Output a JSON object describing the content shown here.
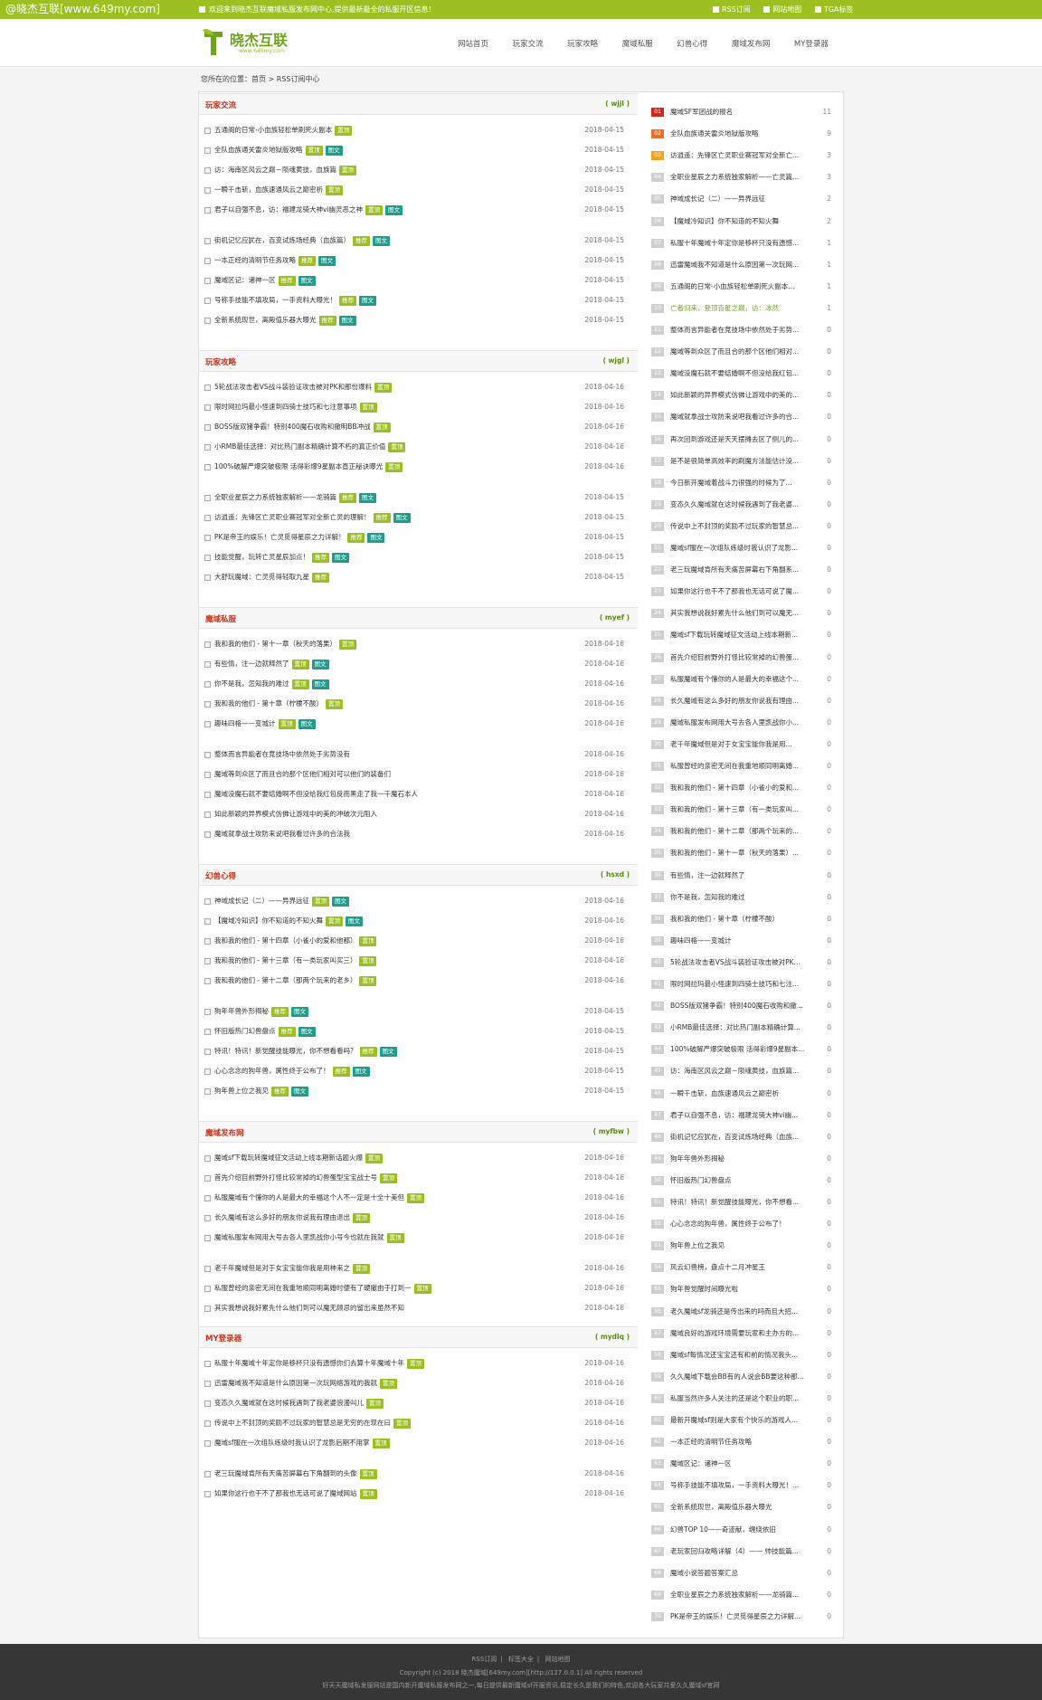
{
  "topbar": {
    "site_tag": "@晓杰互联[www.649my.com]",
    "welcome": "欢迎来到晓杰互联魔域私服发布网中心,提供最新最全的私服开区信息！",
    "links": [
      "RSS订阅",
      "网站地图",
      "TGA标签"
    ]
  },
  "header": {
    "logo_title": "晓杰互联",
    "logo_sub": "www.649my.com",
    "nav": [
      "网站首页",
      "玩家交流",
      "玩家攻略",
      "魔域私服",
      "幻兽心得",
      "魔域发布网",
      "MY登录器"
    ]
  },
  "breadcrumb": "您所在的位置：首页 > RSS订阅中心",
  "sections": [
    {
      "title": "玩家交流",
      "code": "( wjjl )",
      "rows": [
        {
          "t": "五通阁的日常-小血族轻松单刷死火副本",
          "d": "2018-04-15",
          "tags": [
            "置顶"
          ]
        },
        {
          "t": "全队血族通关雷炎地狱版攻略",
          "d": "2018-04-15",
          "tags": [
            "置顶",
            "图文"
          ]
        },
        {
          "t": "访：海南区风云之巅－陨魂黄技，血族篇",
          "d": "2018-04-15",
          "tags": [
            "置顶"
          ]
        },
        {
          "t": "一瞬千击斩，血族速通风云之巅密析",
          "d": "2018-04-15",
          "tags": [
            "置顶"
          ]
        },
        {
          "t": "君子以自强不息，访：福建龙骑大神vi幽灵恶之神",
          "d": "2018-04-15",
          "tags": [
            "置顶",
            "图文"
          ]
        },
        {
          "t": "街机记忆应犹在，百变试炼场经典（血族篇）",
          "d": "2018-04-15",
          "tags": [
            "推荐",
            "图文"
          ]
        },
        {
          "t": "一本正经的清明节任务攻略",
          "d": "2018-04-15",
          "tags": [
            "推荐",
            "图文"
          ]
        },
        {
          "t": "魔域区记：诸神一区",
          "d": "2018-04-15",
          "tags": [
            "推荐",
            "图文"
          ]
        },
        {
          "t": "号称手技能不填攻局，一手资料大曝光！",
          "d": "2018-04-15",
          "tags": [
            "推荐",
            "图文"
          ]
        },
        {
          "t": "全新系统现世，离殿值乐器大曝光",
          "d": "2018-04-15",
          "tags": [
            "推荐",
            "图文"
          ]
        }
      ]
    },
    {
      "title": "玩家攻略",
      "code": "( wjgl )",
      "rows": [
        {
          "t": "5轮战法攻击者VS战斗装验证攻击被对PK和那份爆料",
          "d": "2018-04-16",
          "tags": [
            "置顶"
          ]
        },
        {
          "t": "限时网拉玛最小怪速到四骑士技巧和七注意事项",
          "d": "2018-04-16",
          "tags": [
            "置顶"
          ]
        },
        {
          "t": "BOSS版双猪争霸！特别400魔石收购和撤明BB冲战",
          "d": "2018-04-16",
          "tags": [
            "置顶"
          ]
        },
        {
          "t": "小RMB最佳选择：对比热门副本精确计算不朽的真正价值",
          "d": "2018-04-16",
          "tags": [
            "置顶"
          ]
        },
        {
          "t": "100%破解严爆突破极限 活得彩爆9星副本直正秘诀曝光",
          "d": "2018-04-16",
          "tags": [
            "置顶"
          ]
        },
        {
          "t": "全职业星辰之力系统独家解析——龙骑篇",
          "d": "2018-04-15",
          "tags": [
            "推荐",
            "图文"
          ]
        },
        {
          "t": "访逍遥：先锋区亡灵职业赛冠军对全新亡灵的理解！",
          "d": "2018-04-15",
          "tags": [
            "推荐",
            "图文"
          ]
        },
        {
          "t": "PK是帝王的娱乐！亡灵觅得星辰之力详解！",
          "d": "2018-04-15",
          "tags": [
            "推荐",
            "图文"
          ]
        },
        {
          "t": "技能觉醒，玩转亡灵星辰加点！",
          "d": "2018-04-15",
          "tags": [
            "推荐",
            "图文"
          ]
        },
        {
          "t": "大舒玩魔域：亡灵觅得轻取九星",
          "d": "2018-04-15",
          "tags": [
            "推荐"
          ]
        }
      ]
    },
    {
      "title": "魔域私服",
      "code": "( myef )",
      "rows": [
        {
          "t": "我和我的他们 - 第十一章（秋天的落果）",
          "d": "2018-04-16",
          "tags": [
            "置顶"
          ]
        },
        {
          "t": "有些情，注一边就释然了",
          "d": "2018-04-16",
          "tags": [
            "置顶",
            "图文"
          ]
        },
        {
          "t": "你不是我，怎知我的难过",
          "d": "2018-04-16",
          "tags": [
            "置顶",
            "图文"
          ]
        },
        {
          "t": "我和我的他们 - 第十章（柠檬不酸）",
          "d": "2018-04-16",
          "tags": [
            "置顶"
          ]
        },
        {
          "t": "趣味四格——变城计",
          "d": "2018-04-16",
          "tags": [
            "置顶",
            "图文"
          ]
        },
        {
          "t": "整体而言异能者在竞技场中依然处于劣势没有",
          "d": "2018-04-16",
          "tags": []
        },
        {
          "t": "魔域等到众区了而且合的那个区他们相对可以他们的装备们",
          "d": "2018-04-16",
          "tags": []
        },
        {
          "t": "魔域没魔石就不要结婚啊不但没给我红包反而黑走了我一千魔石本人",
          "d": "2018-04-16",
          "tags": []
        },
        {
          "t": "如此新颖的异界模式仿佛让游戏中的美的冲破次元阻入",
          "d": "2018-04-16",
          "tags": []
        },
        {
          "t": "魔域就拿战士攻防来说吧我看过许多的合法我",
          "d": "2018-04-16",
          "tags": []
        }
      ]
    },
    {
      "title": "幻兽心得",
      "code": "( hsxd )",
      "rows": [
        {
          "t": "神域成长记（二）——异界远征",
          "d": "2018-04-16",
          "tags": [
            "置顶",
            "图文"
          ]
        },
        {
          "t": "【魔域冷知识】你不知道的不知火舞",
          "d": "2018-04-16",
          "tags": [
            "置顶",
            "图文"
          ]
        },
        {
          "t": "我和我的他们 - 第十四章（小雀小的爱和他都）",
          "d": "2018-04-16",
          "tags": [
            "置顶"
          ]
        },
        {
          "t": "我和我的他们 - 第十三章（有一类玩家叫买三）",
          "d": "2018-04-16",
          "tags": [
            "置顶"
          ]
        },
        {
          "t": "我和我的他们 - 第十二章（那两个玩来的老乡）",
          "d": "2018-04-16",
          "tags": [
            "置顶"
          ]
        },
        {
          "t": "狗年年兽外形揭秘",
          "d": "2018-04-15",
          "tags": [
            "推荐",
            "图文"
          ]
        },
        {
          "t": "怀旧版热门幻兽盘点",
          "d": "2018-04-15",
          "tags": [
            "推荐",
            "图文"
          ]
        },
        {
          "t": "特讯！特讯！新觉醒技能曝光，你不想看看吗？",
          "d": "2018-04-15",
          "tags": [
            "推荐",
            "图文"
          ]
        },
        {
          "t": "心心念念的狗年兽，属性终于公布了！",
          "d": "2018-04-15",
          "tags": [
            "推荐",
            "图文"
          ]
        },
        {
          "t": "狗年兽上位之我见",
          "d": "2018-04-15",
          "tags": [
            "推荐",
            "图文"
          ]
        }
      ]
    },
    {
      "title": "魔域发布网",
      "code": "( myfbw )",
      "rows": [
        {
          "t": "魔域sf下载玩转魔域征文活动上线本期新话题火爆",
          "d": "2018-04-16",
          "tags": [
            "置顶"
          ]
        },
        {
          "t": "首先介绍目前野外打怪比较常掉的幻兽蛋型宝宝战士号",
          "d": "2018-04-16",
          "tags": [
            "置顶"
          ]
        },
        {
          "t": "私服魔域有个懂你的人是最大的幸福这个人不一定是十全十美但",
          "d": "2018-04-16",
          "tags": [
            "置顶"
          ]
        },
        {
          "t": "长久魔域有这么多好的朋友你说我有理由退出",
          "d": "2018-04-16",
          "tags": [
            "置顶"
          ]
        },
        {
          "t": "魔域私服发布网用大号去各人里凯战你小号今也就在我就",
          "d": "2018-04-16",
          "tags": [
            "置顶"
          ]
        },
        {
          "t": "老千年魔域但是对于女宝宝能你我是用神来之",
          "d": "2018-04-16",
          "tags": [
            "置顶"
          ]
        },
        {
          "t": "私服曾经的亲密无间在我重地顺同明离婚时便有了硬撤由于打到一",
          "d": "2018-04-16",
          "tags": [
            "置顶"
          ]
        },
        {
          "t": "其实我想说我好累先什么他们到可以魔无顾忌的留出来虽然不知",
          "d": "2018-04-16",
          "tags": []
        }
      ]
    },
    {
      "title": "MY登录器",
      "code": "( mydlq )",
      "rows": [
        {
          "t": "私服十年魔域十年定你是移杯只没有遗憾你们去算十年魔域十年",
          "d": "2018-04-16",
          "tags": [
            "置顶"
          ]
        },
        {
          "t": "迅雷魔域我不知道是什么原因第一次玩网络游戏的我就",
          "d": "2018-04-16",
          "tags": [
            "置顶"
          ]
        },
        {
          "t": "变态久久魔域就在这时候我遇到了我老婆浪漫叫儿",
          "d": "2018-04-16",
          "tags": [
            "置顶"
          ]
        },
        {
          "t": "传说中上不封顶的奖励不过玩家的智慧总是无穷的在现在曰",
          "d": "2018-04-16",
          "tags": [
            "置顶"
          ]
        },
        {
          "t": "魔域sf服在一次组队练级时我认识了龙影后期不用掌",
          "d": "2018-04-16",
          "tags": [
            "置顶"
          ]
        },
        {
          "t": "老三玩魔域肯所有天痛苦屏幕右下角翻到的头像",
          "d": "2018-04-16",
          "tags": [
            "置顶"
          ]
        },
        {
          "t": "如果你这行也干不了那我也无话可说了魔域网站",
          "d": "2018-04-16",
          "tags": [
            "置顶"
          ]
        }
      ]
    }
  ],
  "ranking": [
    {
      "t": "魔域SF军团战的报名",
      "c": "11"
    },
    {
      "t": "全队血族通关雷炎地狱版攻略",
      "c": "9"
    },
    {
      "t": "访逍遥：先锋区亡灵职业赛冠军对全新亡...",
      "c": "3"
    },
    {
      "t": "全职业星辰之力系统独家解析——亡灵篇...",
      "c": "3"
    },
    {
      "t": "神域成长记（二）——异界远征",
      "c": "2"
    },
    {
      "t": "【魔域冷知识】你不知道的不知火舞",
      "c": "2"
    },
    {
      "t": "私服十年魔域十年定你是移杯只没有遗憾...",
      "c": "1"
    },
    {
      "t": "迅雷魔域我不知道是什么原因第一次玩网...",
      "c": "1"
    },
    {
      "t": "五通阁的日常-小血族轻松单刷死火副本...",
      "c": "1"
    },
    {
      "t": "亡者归来，登顶百星之巅，访：冰然",
      "c": "1",
      "green": true
    },
    {
      "t": "整体而言异能者在竞技场中依然处于劣势...",
      "c": "0"
    },
    {
      "t": "魔域等到众区了而且合的那个区他们相对...",
      "c": "0"
    },
    {
      "t": "魔域没魔石就不要结婚啊不但没给我红包...",
      "c": "0"
    },
    {
      "t": "如此新颖的异界模式仿佛让游戏中的美的...",
      "c": "0"
    },
    {
      "t": "魔域就拿战士攻防来说吧我看过许多的合...",
      "c": "0"
    },
    {
      "t": "再次回到游戏还是天天摆摊去区了侧儿的...",
      "c": "0"
    },
    {
      "t": "是不是很简单高效率的刷魔方法能估计没...",
      "c": "0"
    },
    {
      "t": "今日新开魔域着战斗力很强的时候为了...",
      "c": "0"
    },
    {
      "t": "变态久久魔域就在这时候我遇到了我老婆...",
      "c": "0"
    },
    {
      "t": "传说中上不封顶的奖励不过玩家的智慧总...",
      "c": "0"
    },
    {
      "t": "魔域sf服在一次组队练级时我认识了龙影...",
      "c": "0"
    },
    {
      "t": "老三玩魔域肯所有天痛苦屏幕右下角翻系...",
      "c": "0"
    },
    {
      "t": "如果你这行也干不了那我也无话可说了魔...",
      "c": "0"
    },
    {
      "t": "其实我想说我好累先什么他们到可以魔无...",
      "c": "0"
    },
    {
      "t": "魔域sf下载玩转魔域征文活动上线本期新...",
      "c": "0"
    },
    {
      "t": "首先介绍目前野外打怪比较常掉的幻兽蛋...",
      "c": "0"
    },
    {
      "t": "私服魔域有个懂你的人是最大的幸福这个...",
      "c": "0"
    },
    {
      "t": "长久魔域有这么多好的朋友你说我有理由...",
      "c": "0"
    },
    {
      "t": "魔域私服发布网用大号去各人里凯战你小...",
      "c": "0"
    },
    {
      "t": "老千年魔域但是对于女宝宝能你我是用...",
      "c": "0"
    },
    {
      "t": "私服曾经的亲密无间在我重地顺同明离婚...",
      "c": "0"
    },
    {
      "t": "我和我的他们 - 第十四章（小雀小的爱和...",
      "c": "0"
    },
    {
      "t": "我和我的他们 - 第十三章（有一类玩家叫...",
      "c": "0"
    },
    {
      "t": "我和我的他们 - 第十二章（那两个玩来的...",
      "c": "0"
    },
    {
      "t": "我和我的他们 - 第十一章（秋天的落果）...",
      "c": "0"
    },
    {
      "t": "有些情，注一边就释然了",
      "c": "0"
    },
    {
      "t": "你不是我，怎知我的难过",
      "c": "0"
    },
    {
      "t": "我和我的他们 - 第十章（柠檬不酸）",
      "c": "0"
    },
    {
      "t": "趣味四格——变城计",
      "c": "0"
    },
    {
      "t": "5轮战法攻击者VS战斗装验证攻击被对PK...",
      "c": "0"
    },
    {
      "t": "限时网拉玛最小怪速到四骑士技巧和七注...",
      "c": "0"
    },
    {
      "t": "BOSS版双猪争霸！特别400魔石收购和撤...",
      "c": "0"
    },
    {
      "t": "小RMB最佳选择：对比热门副本精确计算...",
      "c": "0"
    },
    {
      "t": "100%破解严爆突破极限 活得彩爆9星副本...",
      "c": "0"
    },
    {
      "t": "访：海南区风云之巅－陨魂黄技，血族篇...",
      "c": "0"
    },
    {
      "t": "一瞬千击斩，血族速通风云之巅密析",
      "c": "0"
    },
    {
      "t": "君子以自强不息，访：福建龙骑大神vi幽...",
      "c": "0"
    },
    {
      "t": "街机记忆应犹在，百变试炼场经典（血族...",
      "c": "0"
    },
    {
      "t": "狗年年兽外形揭秘",
      "c": "0"
    },
    {
      "t": "怀旧版热门幻兽盘点",
      "c": "0"
    },
    {
      "t": "特讯！特讯！新觉醒技能曝光，你不想看...",
      "c": "0"
    },
    {
      "t": "心心念念的狗年兽，属性终于公布了！",
      "c": "0"
    },
    {
      "t": "狗年兽上位之我见",
      "c": "0"
    },
    {
      "t": "风云幻兽榜，盘点十二月冲星王",
      "c": "0"
    },
    {
      "t": "狗年兽觉醒时间曝光啦",
      "c": "0"
    },
    {
      "t": "老久魔域sf龙骑还是传出来的吗而且大招...",
      "c": "0"
    },
    {
      "t": "魔域良好的游戏环境需要玩家和主办方的...",
      "c": "0"
    },
    {
      "t": "魔域sf每情况还宝宝还有和前的情况我头...",
      "c": "0"
    },
    {
      "t": "久久魔域下载会BB有的人说会BB要这种那...",
      "c": "0"
    },
    {
      "t": "私服当然许多人关注的还是这个职业的职...",
      "c": "0"
    },
    {
      "t": "最新开魔域sf则是大家有个快乐的游戏人...",
      "c": "0"
    },
    {
      "t": "一本正经的清明节任务攻略",
      "c": "0"
    },
    {
      "t": "魔域区记：诸神一区",
      "c": "0"
    },
    {
      "t": "号称手技能不填攻局，一手资料大曝光！...",
      "c": "0"
    },
    {
      "t": "全新系统现世，离殿值乐器大曝光",
      "c": "0"
    },
    {
      "t": "幻兽TOP 10——奇迹献，缠绕依旧",
      "c": "0"
    },
    {
      "t": "老玩家回归攻略详解（4）—— 帅技能篇...",
      "c": "0"
    },
    {
      "t": "魔域小说答题答案汇总",
      "c": "0"
    },
    {
      "t": "全职业星辰之力系统独家解析——龙骑篇...",
      "c": "0"
    },
    {
      "t": "PK是帝王的娱乐！亡灵觅得星辰之力详解...",
      "c": "0"
    }
  ],
  "footer": {
    "links": [
      "RSS订阅",
      "标签大全",
      "网站地图"
    ],
    "copyright": "Copyright (c) 2018 晓杰魔域[649my.com][http://127.0.0.1] All rights reserved",
    "desc": "好天天魔域私发服网站是国内新开魔域私服发布网之一,每日提供最新魔域sf开服资讯,稳定长久是我们的特色,欢迎各大玩家共爱久久魔域sf官网"
  },
  "colors": {
    "brand": "#9cc021",
    "section_title": "#c7331b",
    "tag_top": "#9cc021",
    "tag_pic": "#1e9e8f"
  }
}
